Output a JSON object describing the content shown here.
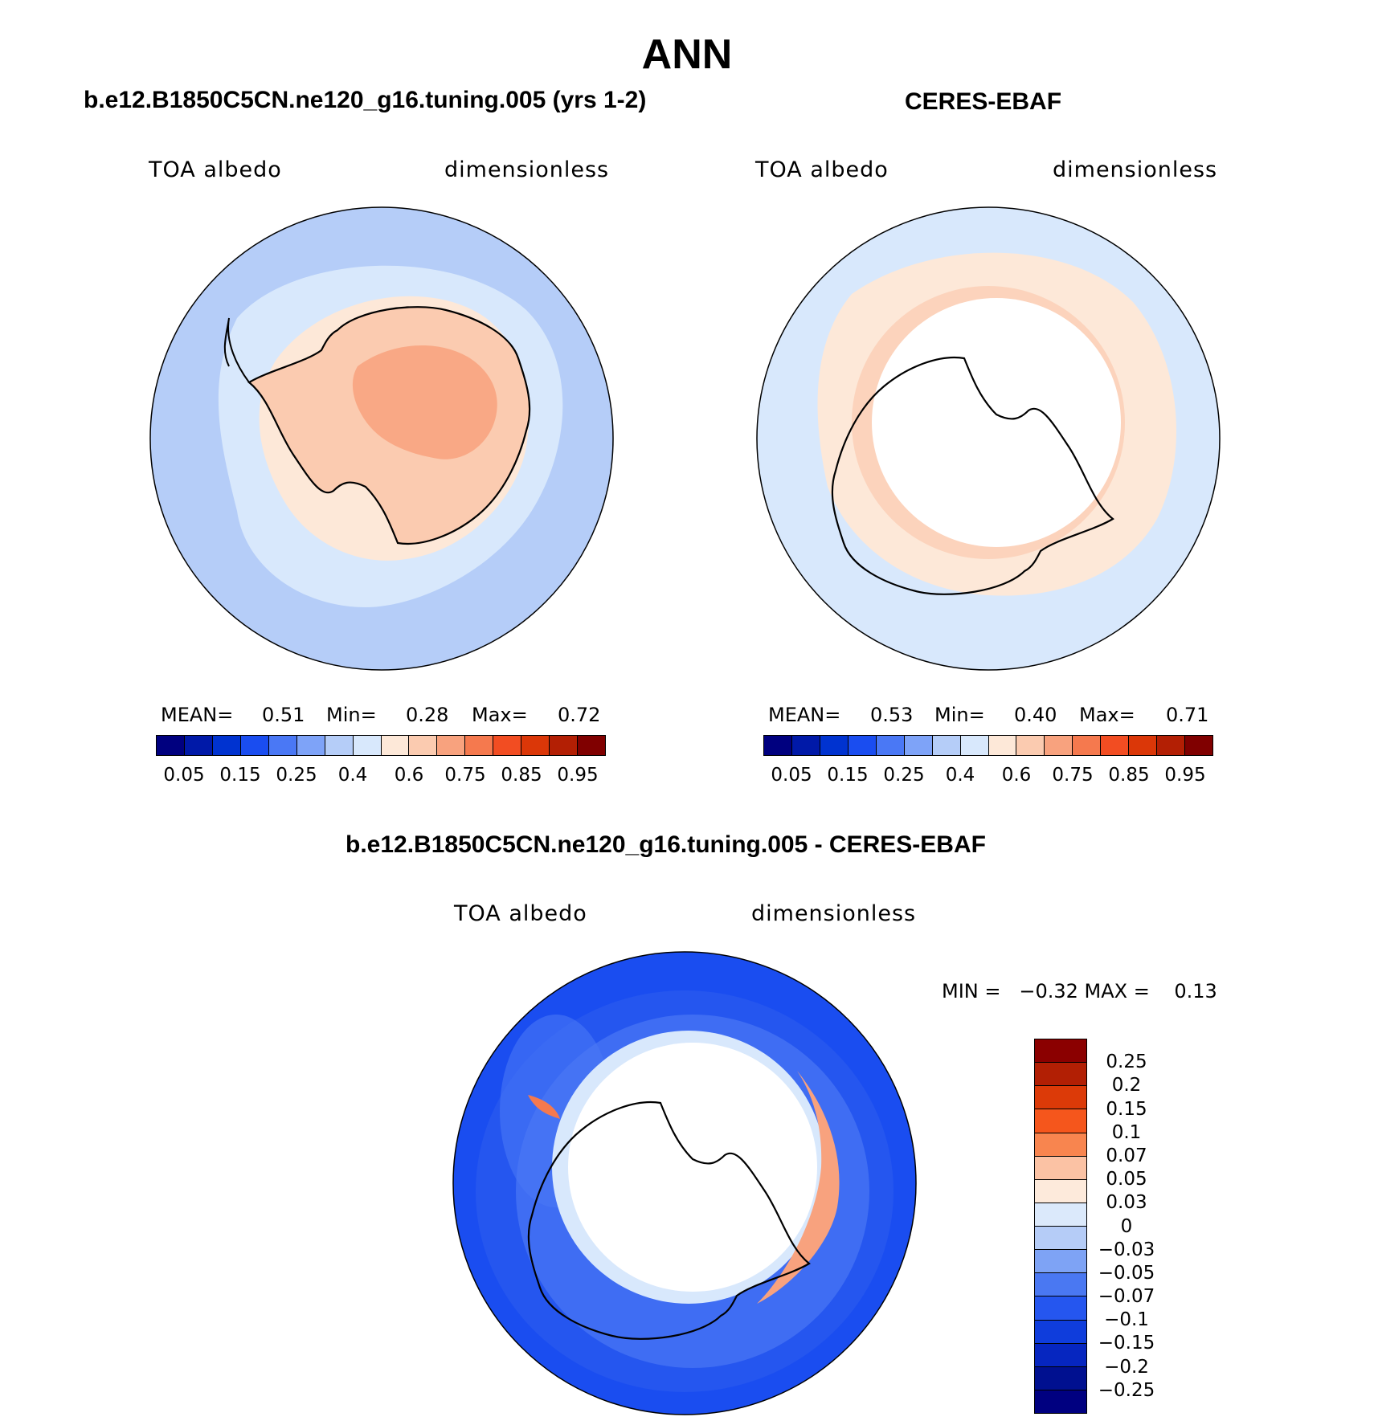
{
  "title": "ANN",
  "panels": {
    "model": {
      "title": "b.e12.B1850C5CN.ne120_g16.tuning.005 (yrs 1-2)",
      "variable": "TOA albedo",
      "units": "dimensionless",
      "stats": {
        "mean_label": "MEAN=",
        "mean": "0.51",
        "min_label": "Min=",
        "min": "0.28",
        "max_label": "Max=",
        "max": "0.72"
      }
    },
    "obs": {
      "title": "CERES-EBAF",
      "variable": "TOA albedo",
      "units": "dimensionless",
      "stats": {
        "mean_label": "MEAN=",
        "mean": "0.53",
        "min_label": "Min=",
        "min": "0.40",
        "max_label": "Max=",
        "max": "0.71"
      }
    },
    "diff": {
      "title": "b.e12.B1850C5CN.ne120_g16.tuning.005 - CERES-EBAF",
      "variable": "TOA albedo",
      "units": "dimensionless",
      "stats_text": "MIN =   −0.32 MAX =    0.13"
    }
  },
  "colorbar_main": {
    "colors": [
      "#00007f",
      "#0019a8",
      "#0033d0",
      "#1a4df0",
      "#4a78f5",
      "#7ea3f8",
      "#b5cdf8",
      "#d8e8fc",
      "#fde8d8",
      "#fbcbb0",
      "#f8a27e",
      "#f5794e",
      "#f24d22",
      "#db3708",
      "#b31f04",
      "#800000"
    ],
    "ticks": [
      "0.05",
      "0.15",
      "0.25",
      "0.4",
      "0.6",
      "0.75",
      "0.85",
      "0.95"
    ]
  },
  "colorbar_diff": {
    "colors": [
      "#8b0000",
      "#b21f04",
      "#dc3a08",
      "#f5561c",
      "#f8854f",
      "#fbc2a4",
      "#fdeadb",
      "#dbe9fb",
      "#b5ccf7",
      "#7ea3f5",
      "#4a78f2",
      "#2556ef",
      "#0f3ddc",
      "#0626c0",
      "#001090",
      "#000080"
    ],
    "ticks": [
      "0.25",
      "0.2",
      "0.15",
      "0.1",
      "0.07",
      "0.05",
      "0.03",
      "0",
      "−0.03",
      "−0.05",
      "−0.07",
      "−0.1",
      "−0.15",
      "−0.2",
      "−0.25"
    ]
  }
}
